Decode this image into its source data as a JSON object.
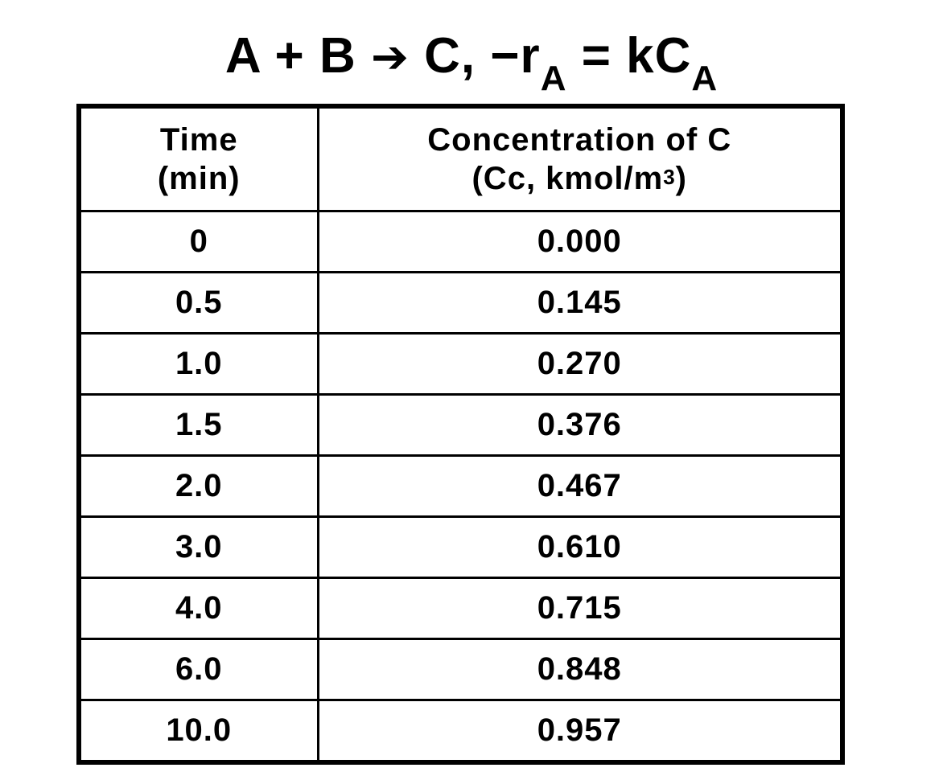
{
  "title": {
    "lhs": "A + B",
    "arrow": "➔",
    "rhs_product": "C,",
    "rate_prefix": "−r",
    "rate_sub": "A",
    "equals": "= kC",
    "conc_sub": "A"
  },
  "table": {
    "headers": {
      "time_line1": "Time",
      "time_line2": "(min)",
      "conc_line1": "Concentration of C",
      "conc_line2_pre": "(Cc, kmol/m",
      "conc_line2_sup": "3",
      "conc_line2_post": ")"
    },
    "rows": [
      {
        "time": "0",
        "conc": "0.000"
      },
      {
        "time": "0.5",
        "conc": "0.145"
      },
      {
        "time": "1.0",
        "conc": "0.270"
      },
      {
        "time": "1.5",
        "conc": "0.376"
      },
      {
        "time": "2.0",
        "conc": "0.467"
      },
      {
        "time": "3.0",
        "conc": "0.610"
      },
      {
        "time": "4.0",
        "conc": "0.715"
      },
      {
        "time": "6.0",
        "conc": "0.848"
      },
      {
        "time": "10.0",
        "conc": "0.957"
      }
    ]
  }
}
